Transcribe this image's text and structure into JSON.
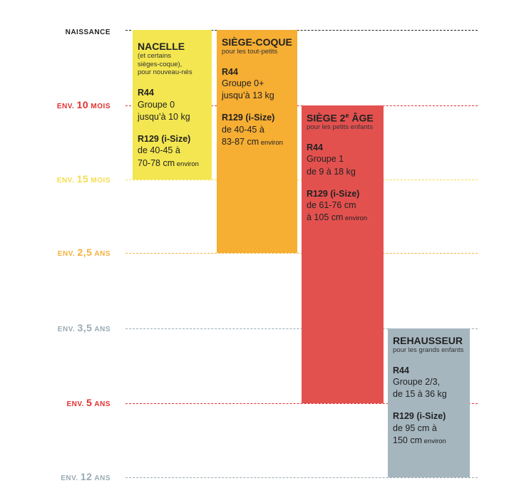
{
  "colors": {
    "grey": "#9aabb5",
    "red": "#e3302f",
    "yellow": "#f5dd4d",
    "orange": "#f5b13f",
    "dark": "#222222",
    "block_yellow": "#f3e650",
    "block_orange": "#f6ae33",
    "block_red": "#e3514f",
    "block_grey": "#a6b6bf"
  },
  "rows": [
    {
      "prefix": "NAISSANCE",
      "value": "",
      "unit": "",
      "color": "dark"
    },
    {
      "prefix": "ENV.",
      "value": "10",
      "unit": "MOIS",
      "color": "red"
    },
    {
      "prefix": "ENV.",
      "value": "15",
      "unit": "MOIS",
      "color": "yellow"
    },
    {
      "prefix": "ENV.",
      "value": "2,5",
      "unit": "ANS",
      "color": "orange"
    },
    {
      "prefix": "ENV.",
      "value": "3,5",
      "unit": "ANS",
      "color": "grey"
    },
    {
      "prefix": "ENV.",
      "value": "5",
      "unit": "ANS",
      "color": "red"
    },
    {
      "prefix": "ENV.",
      "value": "12",
      "unit": "ANS",
      "color": "grey"
    }
  ],
  "seats": [
    {
      "id": "nacelle",
      "title": "NACELLE",
      "title_sup": "",
      "title_after": "",
      "start_row": 0,
      "end_row": 2,
      "column": 0,
      "color": "block_yellow",
      "subtitle": [
        "(et certains",
        "sièges-coque),",
        "pour nouveau-nés"
      ],
      "sections": [
        {
          "standard": "R44",
          "lines": [
            {
              "text": "Groupe 0",
              "suffix": ""
            },
            {
              "text": "jusqu’à 10 kg",
              "suffix": ""
            }
          ]
        },
        {
          "standard": "R129 (i-Size)",
          "lines": [
            {
              "text": "de 40-45 à",
              "suffix": ""
            },
            {
              "text": "70-78 cm",
              "suffix": "environ"
            }
          ]
        }
      ]
    },
    {
      "id": "siege-coque",
      "title": "SIÈGE-COQUE",
      "title_sup": "",
      "title_after": "",
      "start_row": 0,
      "end_row": 3,
      "column": 1,
      "color": "block_orange",
      "subtitle": [
        "pour les tout-petits"
      ],
      "sections": [
        {
          "standard": "R44",
          "lines": [
            {
              "text": "Groupe 0+",
              "suffix": ""
            },
            {
              "text": "jusqu’à 13 kg",
              "suffix": ""
            }
          ]
        },
        {
          "standard": "R129 (i-Size)",
          "lines": [
            {
              "text": "de 40-45 à",
              "suffix": ""
            },
            {
              "text": "83-87 cm",
              "suffix": "environ"
            }
          ]
        }
      ]
    },
    {
      "id": "siege-2e-age",
      "title": "SIÈGE 2",
      "title_sup": "e",
      "title_after": " ÂGE",
      "start_row": 1,
      "end_row": 5,
      "column": 2,
      "color": "block_red",
      "subtitle": [
        "pour les petits enfants"
      ],
      "sections": [
        {
          "standard": "R44",
          "lines": [
            {
              "text": "Groupe 1",
              "suffix": ""
            },
            {
              "text": "de 9 à 18 kg",
              "suffix": ""
            }
          ]
        },
        {
          "standard": "R129 (i-Size)",
          "lines": [
            {
              "text": "de 61-76 cm",
              "suffix": ""
            },
            {
              "text": "à 105 cm",
              "suffix": "environ"
            }
          ]
        }
      ]
    },
    {
      "id": "rehausseur",
      "title": "REHAUSSEUR",
      "title_sup": "",
      "title_after": "",
      "start_row": 4,
      "end_row": 6,
      "column": 3,
      "color": "block_grey",
      "subtitle": [
        "pour les grands enfants"
      ],
      "sections": [
        {
          "standard": "R44",
          "lines": [
            {
              "text": "Groupe 2/3,",
              "suffix": ""
            },
            {
              "text": "de 15 à 36 kg",
              "suffix": ""
            }
          ]
        },
        {
          "standard": "R129 (i-Size)",
          "lines": [
            {
              "text": "de 95 cm à",
              "suffix": ""
            },
            {
              "text": "150 cm",
              "suffix": "environ"
            }
          ]
        }
      ]
    }
  ]
}
